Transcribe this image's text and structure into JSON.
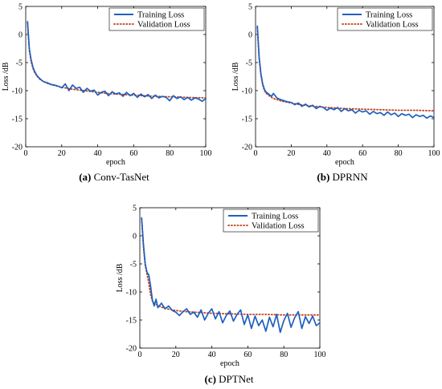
{
  "colors": {
    "training": "#1f5fbf",
    "validation": "#c0401a"
  },
  "chart_data": [
    {
      "type": "line",
      "caption_label": "(a)",
      "caption_text": "Conv-TasNet",
      "xlabel": "epoch",
      "ylabel": "Loss /dB",
      "xlim": [
        0,
        100
      ],
      "ylim": [
        -20,
        5
      ],
      "xticks": [
        0,
        20,
        40,
        60,
        80,
        100
      ],
      "yticks": [
        5,
        0,
        -5,
        -10,
        -15,
        -20
      ],
      "legend_position": "top-right",
      "grid": false,
      "series": [
        {
          "name": "Training Loss",
          "style": "solid",
          "x": [
            1,
            2,
            3,
            4,
            5,
            6,
            7,
            8,
            9,
            10,
            12,
            14,
            16,
            18,
            20,
            22,
            24,
            26,
            28,
            30,
            32,
            34,
            36,
            38,
            40,
            42,
            44,
            46,
            48,
            50,
            52,
            54,
            56,
            58,
            60,
            62,
            64,
            66,
            68,
            70,
            72,
            74,
            76,
            78,
            80,
            82,
            84,
            86,
            88,
            90,
            92,
            94,
            96,
            98,
            100
          ],
          "y": [
            2.3,
            -2.5,
            -4.5,
            -5.8,
            -6.6,
            -7.2,
            -7.6,
            -7.9,
            -8.2,
            -8.4,
            -8.6,
            -8.9,
            -9.0,
            -9.2,
            -9.5,
            -8.8,
            -10.0,
            -9.0,
            -9.6,
            -9.4,
            -10.3,
            -9.6,
            -10.1,
            -9.9,
            -10.8,
            -10.3,
            -10.1,
            -10.9,
            -10.2,
            -10.6,
            -10.4,
            -11.0,
            -10.3,
            -10.9,
            -10.5,
            -11.2,
            -10.6,
            -11.1,
            -10.7,
            -11.4,
            -10.8,
            -11.3,
            -11.0,
            -11.2,
            -11.8,
            -10.9,
            -11.4,
            -11.1,
            -11.6,
            -11.2,
            -11.7,
            -11.3,
            -11.5,
            -11.9,
            -11.4
          ]
        },
        {
          "name": "Validation Loss",
          "style": "dotted",
          "x": [
            1,
            2,
            3,
            4,
            5,
            6,
            7,
            8,
            10,
            12,
            15,
            20,
            25,
            30,
            35,
            40,
            45,
            50,
            60,
            70,
            80,
            90,
            100
          ],
          "y": [
            2.0,
            -2.8,
            -4.8,
            -6.0,
            -6.8,
            -7.3,
            -7.7,
            -8.0,
            -8.4,
            -8.7,
            -9.0,
            -9.4,
            -9.7,
            -9.9,
            -10.1,
            -10.3,
            -10.5,
            -10.6,
            -10.8,
            -11.0,
            -11.1,
            -11.2,
            -11.3
          ]
        }
      ]
    },
    {
      "type": "line",
      "caption_label": "(b)",
      "caption_text": "DPRNN",
      "xlabel": "epoch",
      "ylabel": "Loss /dB",
      "xlim": [
        0,
        100
      ],
      "ylim": [
        -20,
        5
      ],
      "xticks": [
        0,
        20,
        40,
        60,
        80,
        100
      ],
      "yticks": [
        5,
        0,
        -5,
        -10,
        -15,
        -20
      ],
      "legend_position": "top-right",
      "grid": false,
      "series": [
        {
          "name": "Training Loss",
          "style": "solid",
          "x": [
            1,
            2,
            3,
            4,
            5,
            6,
            7,
            8,
            9,
            10,
            12,
            14,
            16,
            18,
            20,
            22,
            24,
            26,
            28,
            30,
            32,
            34,
            36,
            38,
            40,
            42,
            44,
            46,
            48,
            50,
            52,
            54,
            56,
            58,
            60,
            62,
            64,
            66,
            68,
            70,
            72,
            74,
            76,
            78,
            80,
            82,
            84,
            86,
            88,
            90,
            92,
            94,
            96,
            98,
            100
          ],
          "y": [
            1.5,
            -4.0,
            -7.0,
            -8.8,
            -9.8,
            -10.3,
            -10.5,
            -10.8,
            -11.0,
            -10.5,
            -11.3,
            -11.6,
            -11.8,
            -12.0,
            -12.1,
            -12.5,
            -12.2,
            -12.8,
            -12.4,
            -12.9,
            -12.6,
            -13.2,
            -12.8,
            -13.0,
            -13.5,
            -13.1,
            -13.4,
            -13.0,
            -13.7,
            -13.2,
            -13.6,
            -13.4,
            -14.0,
            -13.5,
            -13.8,
            -13.6,
            -14.2,
            -13.7,
            -14.1,
            -13.9,
            -14.4,
            -13.8,
            -14.3,
            -14.0,
            -14.6,
            -14.1,
            -14.4,
            -14.2,
            -14.8,
            -14.3,
            -14.6,
            -14.4,
            -14.9,
            -14.5,
            -14.8
          ]
        },
        {
          "name": "Validation Loss",
          "style": "dotted",
          "x": [
            1,
            2,
            3,
            4,
            5,
            6,
            8,
            10,
            15,
            20,
            25,
            30,
            40,
            50,
            60,
            70,
            80,
            90,
            100
          ],
          "y": [
            1.2,
            -4.2,
            -7.2,
            -9.0,
            -10.0,
            -10.5,
            -11.0,
            -11.4,
            -11.9,
            -12.2,
            -12.5,
            -12.7,
            -13.0,
            -13.2,
            -13.3,
            -13.4,
            -13.5,
            -13.5,
            -13.6
          ]
        }
      ]
    },
    {
      "type": "line",
      "caption_label": "(c)",
      "caption_text": "DPTNet",
      "xlabel": "epoch",
      "ylabel": "Loss /dB",
      "xlim": [
        0,
        100
      ],
      "ylim": [
        -20,
        5
      ],
      "xticks": [
        0,
        20,
        40,
        60,
        80,
        100
      ],
      "yticks": [
        5,
        0,
        -5,
        -10,
        -15,
        -20
      ],
      "legend_position": "top-right",
      "grid": false,
      "series": [
        {
          "name": "Training Loss",
          "style": "solid",
          "x": [
            1,
            2,
            3,
            4,
            5,
            6,
            7,
            8,
            9,
            10,
            12,
            14,
            16,
            18,
            20,
            22,
            24,
            26,
            28,
            30,
            32,
            34,
            36,
            38,
            40,
            42,
            44,
            46,
            48,
            50,
            52,
            54,
            56,
            58,
            60,
            62,
            64,
            66,
            68,
            70,
            72,
            74,
            76,
            78,
            80,
            82,
            84,
            86,
            88,
            90,
            92,
            94,
            96,
            98,
            100
          ],
          "y": [
            3.2,
            -1.5,
            -5.0,
            -6.5,
            -7.0,
            -9.0,
            -11.5,
            -12.5,
            -11.3,
            -12.8,
            -12.0,
            -13.0,
            -12.5,
            -13.3,
            -13.6,
            -14.2,
            -13.5,
            -13.0,
            -14.0,
            -13.6,
            -14.5,
            -13.2,
            -15.0,
            -13.8,
            -13.0,
            -14.8,
            -13.5,
            -15.5,
            -14.2,
            -13.4,
            -15.2,
            -14.0,
            -13.2,
            -15.8,
            -14.1,
            -16.5,
            -14.3,
            -16.0,
            -15.0,
            -17.0,
            -14.5,
            -16.2,
            -14.0,
            -17.2,
            -15.1,
            -13.8,
            -16.3,
            -14.6,
            -13.5,
            -16.5,
            -14.4,
            -15.6,
            -14.3,
            -16.0,
            -15.5
          ]
        },
        {
          "name": "Validation Loss",
          "style": "dotted",
          "x": [
            1,
            2,
            3,
            4,
            5,
            6,
            7,
            8,
            10,
            12,
            15,
            20,
            25,
            30,
            40,
            50,
            60,
            70,
            80,
            90,
            100
          ],
          "y": [
            3.0,
            -2.0,
            -5.3,
            -6.8,
            -8.5,
            -10.5,
            -11.6,
            -12.0,
            -12.4,
            -12.7,
            -13.0,
            -13.3,
            -13.5,
            -13.6,
            -13.8,
            -13.9,
            -14.0,
            -14.0,
            -14.1,
            -14.1,
            -14.1
          ]
        }
      ]
    }
  ]
}
